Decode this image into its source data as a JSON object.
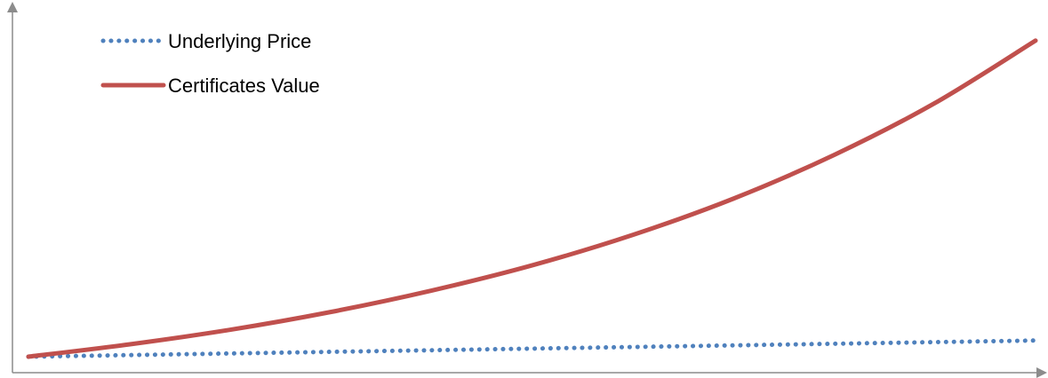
{
  "chart_data": {
    "type": "line",
    "title": "",
    "xlabel": "",
    "ylabel": "",
    "grid": false,
    "legend_position": "top-left",
    "axis_ticks": false,
    "x": [
      0,
      10,
      20,
      30,
      40,
      50,
      60,
      70,
      80,
      90,
      100
    ],
    "ylim": [
      0,
      100
    ],
    "series": [
      {
        "name": "Underlying Price",
        "color": "#4F81BD",
        "style": "dotted",
        "values": [
          0,
          0.5,
          1,
          1.5,
          2,
          2.5,
          3,
          3.5,
          4,
          4.5,
          5
        ]
      },
      {
        "name": "Certificates Value",
        "color": "#C0504D",
        "style": "solid",
        "values": [
          0,
          3.8,
          8.3,
          13.8,
          20.4,
          28.2,
          37.6,
          48.8,
          62.3,
          78.3,
          97.6
        ]
      }
    ]
  }
}
